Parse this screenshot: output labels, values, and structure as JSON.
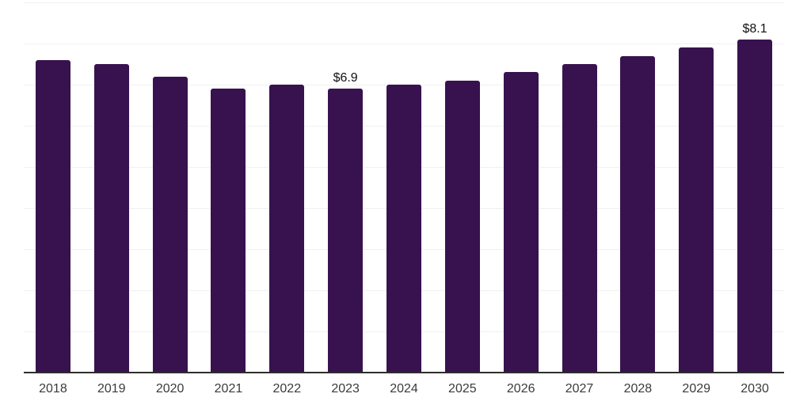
{
  "chart_data": {
    "type": "bar",
    "title": "",
    "xlabel": "",
    "ylabel": "",
    "categories": [
      "2018",
      "2019",
      "2020",
      "2021",
      "2022",
      "2023",
      "2024",
      "2025",
      "2026",
      "2027",
      "2028",
      "2029",
      "2030"
    ],
    "values": [
      7.6,
      7.5,
      7.2,
      6.9,
      7.0,
      6.9,
      7.0,
      7.1,
      7.3,
      7.5,
      7.7,
      7.9,
      8.1
    ],
    "data_labels": [
      {
        "category": "2023",
        "text": "$6.9"
      },
      {
        "category": "2030",
        "text": "$8.1"
      }
    ],
    "ylim": [
      0,
      9
    ],
    "gridline_step": 1,
    "grid": "horizontal, unlabeled, $1 intervals",
    "legend": "none",
    "colors": {
      "bar": "#38124E",
      "gridline": "#F0F0F0",
      "axis_line": "#2E2E2E",
      "tick_label": "#3B3B3B",
      "data_label": "#111111",
      "background": "#FFFFFF"
    }
  }
}
